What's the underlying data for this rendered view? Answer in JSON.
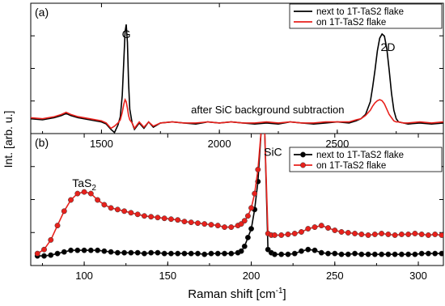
{
  "chart_data": {
    "type": "line",
    "ylabel": "Int. [arb. u.]",
    "panels": [
      {
        "label": "(a)",
        "xlim": [
          1200,
          2950
        ],
        "xticks": [
          1500,
          2000,
          2500
        ],
        "ylim": [
          -0.08,
          1.15
        ],
        "legend": "top-right",
        "peak_labels": [
          {
            "text": "G",
            "x": 1605,
            "y": 0.82
          },
          {
            "text": "2D",
            "x": 2715,
            "y": 0.7
          }
        ],
        "annotation": {
          "text": "after SiC background subtraction",
          "x": 1880,
          "y": 0.11
        },
        "series": [
          {
            "name": "next to 1T-TaS2 flake",
            "color": "#000000",
            "x": [
              1200,
              1250,
              1300,
              1330,
              1350,
              1370,
              1400,
              1450,
              1500,
              1520,
              1540,
              1555,
              1570,
              1580,
              1588,
              1595,
              1600,
              1605,
              1610,
              1615,
              1620,
              1630,
              1640,
              1660,
              1680,
              1700,
              1720,
              1750,
              1800,
              1850,
              1900,
              1950,
              2000,
              2050,
              2100,
              2150,
              2200,
              2250,
              2300,
              2350,
              2400,
              2450,
              2500,
              2550,
              2580,
              2600,
              2620,
              2640,
              2650,
              2660,
              2670,
              2680,
              2690,
              2700,
              2710,
              2720,
              2730,
              2740,
              2750,
              2760,
              2780,
              2800,
              2850,
              2900,
              2950
            ],
            "y": [
              0.06,
              0.05,
              0.07,
              0.09,
              0.11,
              0.09,
              0.07,
              0.05,
              0.03,
              0.01,
              -0.04,
              -0.07,
              0.0,
              0.08,
              0.28,
              0.62,
              0.88,
              0.95,
              0.78,
              0.4,
              0.15,
              0.02,
              -0.04,
              0.02,
              -0.03,
              0.03,
              -0.02,
              0.02,
              0.03,
              0.02,
              0.01,
              0.03,
              0.02,
              0.03,
              0.02,
              0.01,
              0.02,
              0.01,
              0.03,
              0.02,
              0.01,
              0.02,
              0.03,
              0.02,
              0.04,
              0.06,
              0.1,
              0.22,
              0.36,
              0.52,
              0.7,
              0.82,
              0.86,
              0.84,
              0.72,
              0.52,
              0.3,
              0.14,
              0.06,
              0.03,
              0.02,
              0.01,
              0.02,
              0.01,
              0.02
            ]
          },
          {
            "name": "on 1T-TaS2 flake",
            "color": "#e8211c",
            "x": [
              1200,
              1250,
              1300,
              1330,
              1350,
              1370,
              1400,
              1450,
              1500,
              1520,
              1540,
              1555,
              1570,
              1580,
              1588,
              1595,
              1600,
              1605,
              1610,
              1615,
              1620,
              1630,
              1640,
              1660,
              1680,
              1700,
              1720,
              1750,
              1800,
              1850,
              1900,
              1950,
              2000,
              2050,
              2100,
              2150,
              2200,
              2250,
              2300,
              2350,
              2400,
              2450,
              2500,
              2550,
              2580,
              2600,
              2620,
              2640,
              2650,
              2660,
              2670,
              2680,
              2690,
              2700,
              2710,
              2720,
              2730,
              2740,
              2750,
              2760,
              2780,
              2800,
              2850,
              2900,
              2950
            ],
            "y": [
              0.07,
              0.06,
              0.08,
              0.1,
              0.12,
              0.1,
              0.08,
              0.06,
              0.04,
              0.02,
              -0.03,
              -0.01,
              0.02,
              0.05,
              0.12,
              0.2,
              0.24,
              0.22,
              0.16,
              0.09,
              0.05,
              0.02,
              -0.03,
              0.03,
              -0.02,
              0.03,
              -0.01,
              0.02,
              0.03,
              0.02,
              0.02,
              0.03,
              0.02,
              0.03,
              0.02,
              0.02,
              0.03,
              0.02,
              0.03,
              0.02,
              0.02,
              0.03,
              0.03,
              0.03,
              0.05,
              0.06,
              0.09,
              0.14,
              0.18,
              0.21,
              0.23,
              0.24,
              0.23,
              0.2,
              0.15,
              0.1,
              0.07,
              0.04,
              0.03,
              0.03,
              0.02,
              0.02,
              0.03,
              0.02,
              0.03
            ]
          }
        ]
      },
      {
        "label": "(b)",
        "xlim": [
          68,
          315
        ],
        "xticks": [
          100,
          150,
          200,
          250,
          300
        ],
        "xlabel": "Raman shift [cm",
        "xlabel_sup": "-1",
        "xlabel_tail": "]",
        "ylim": [
          -0.1,
          1.55
        ],
        "legend": "top-right",
        "peak_labels": [
          {
            "text": "TaS",
            "sub": "2",
            "x": 100,
            "y": 0.88
          },
          {
            "text": "SiC",
            "x": 213,
            "y": 1.27
          }
        ],
        "series": [
          {
            "name": "next to 1T-TaS2 flake",
            "color": "#000000",
            "x": [
              72,
              76,
              80,
              84,
              88,
              92,
              96,
              100,
              104,
              108,
              112,
              116,
              120,
              124,
              128,
              132,
              136,
              140,
              144,
              148,
              152,
              156,
              160,
              164,
              168,
              172,
              176,
              180,
              184,
              188,
              192,
              194,
              196,
              198,
              200,
              202,
              204,
              206,
              208,
              210,
              212,
              214,
              218,
              222,
              226,
              230,
              234,
              238,
              242,
              246,
              250,
              254,
              258,
              262,
              266,
              270,
              274,
              278,
              282,
              286,
              290,
              294,
              298,
              302,
              306,
              310,
              314
            ],
            "y": [
              0.02,
              0.02,
              0.03,
              0.05,
              0.07,
              0.09,
              0.09,
              0.09,
              0.09,
              0.09,
              0.08,
              0.07,
              0.06,
              0.06,
              0.06,
              0.06,
              0.05,
              0.06,
              0.06,
              0.05,
              0.05,
              0.05,
              0.05,
              0.05,
              0.05,
              0.04,
              0.05,
              0.05,
              0.05,
              0.05,
              0.06,
              0.08,
              0.14,
              0.25,
              0.36,
              0.6,
              0.95,
              1.6,
              1.6,
              0.1,
              0.06,
              0.04,
              0.04,
              0.04,
              0.05,
              0.08,
              0.1,
              0.09,
              0.06,
              0.05,
              0.05,
              0.04,
              0.04,
              0.05,
              0.04,
              0.04,
              0.04,
              0.04,
              0.04,
              0.04,
              0.04,
              0.04,
              0.04,
              0.05,
              0.05,
              0.05,
              0.05
            ]
          },
          {
            "name": "on 1T-TaS2 flake",
            "color": "#e8211c",
            "x": [
              72,
              76,
              80,
              84,
              88,
              92,
              96,
              100,
              104,
              108,
              112,
              116,
              120,
              124,
              128,
              132,
              136,
              140,
              144,
              148,
              152,
              156,
              160,
              164,
              168,
              172,
              176,
              180,
              184,
              188,
              192,
              194,
              196,
              198,
              200,
              202,
              204,
              206,
              208,
              210,
              212,
              214,
              218,
              222,
              226,
              230,
              234,
              238,
              242,
              246,
              250,
              254,
              258,
              262,
              266,
              270,
              274,
              278,
              282,
              286,
              290,
              294,
              298,
              302,
              306,
              310,
              314
            ],
            "y": [
              0.05,
              0.1,
              0.22,
              0.4,
              0.58,
              0.72,
              0.8,
              0.82,
              0.8,
              0.72,
              0.66,
              0.62,
              0.6,
              0.58,
              0.56,
              0.54,
              0.52,
              0.51,
              0.5,
              0.49,
              0.48,
              0.47,
              0.45,
              0.44,
              0.43,
              0.42,
              0.41,
              0.4,
              0.38,
              0.38,
              0.4,
              0.42,
              0.46,
              0.52,
              0.62,
              0.8,
              1.1,
              1.6,
              1.6,
              0.3,
              0.28,
              0.28,
              0.28,
              0.29,
              0.3,
              0.32,
              0.36,
              0.38,
              0.4,
              0.37,
              0.34,
              0.32,
              0.31,
              0.3,
              0.29,
              0.28,
              0.29,
              0.3,
              0.29,
              0.28,
              0.29,
              0.29,
              0.3,
              0.29,
              0.28,
              0.29,
              0.28
            ]
          }
        ]
      }
    ]
  }
}
